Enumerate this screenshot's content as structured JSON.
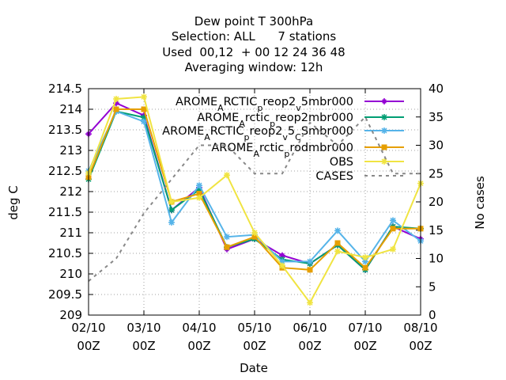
{
  "chart_data": {
    "type": "line",
    "title_lines": [
      "Dew point T 300hPa",
      "Selection: ALL      7 stations",
      "Used  00,12  + 00 12 24 36 48",
      "Averaging window: 12h"
    ],
    "xlabel": "Date",
    "ylabel": "deg C",
    "y2label": "No cases",
    "x_ticks": [
      {
        "date": "2023-10-02T00",
        "l1": "02/10",
        "l2": "00Z"
      },
      {
        "date": "2023-10-03T00",
        "l1": "03/10",
        "l2": "00Z"
      },
      {
        "date": "2023-10-04T00",
        "l1": "04/10",
        "l2": "00Z"
      },
      {
        "date": "2023-10-05T00",
        "l1": "05/10",
        "l2": "00Z"
      },
      {
        "date": "2023-10-06T00",
        "l1": "06/10",
        "l2": "00Z"
      },
      {
        "date": "2023-10-07T00",
        "l1": "07/10",
        "l2": "00Z"
      },
      {
        "date": "2023-10-08T00",
        "l1": "08/10",
        "l2": "00Z"
      }
    ],
    "x": [
      "2023-10-02T00",
      "2023-10-02T12",
      "2023-10-03T00",
      "2023-10-03T12",
      "2023-10-04T00",
      "2023-10-04T12",
      "2023-10-05T00",
      "2023-10-05T12",
      "2023-10-06T00",
      "2023-10-06T12",
      "2023-10-07T00",
      "2023-10-07T12",
      "2023-10-08T00"
    ],
    "xlim": [
      "2023-10-02T00",
      "2023-10-08T00"
    ],
    "ylim": [
      209,
      214.5
    ],
    "yticks": [
      "209",
      "209.5",
      "210",
      "210.5",
      "211",
      "211.5",
      "212",
      "212.5",
      "213",
      "213.5",
      "214",
      "214.5"
    ],
    "y2lim": [
      0,
      40
    ],
    "y2ticks": [
      "0",
      "5",
      "10",
      "15",
      "20",
      "25",
      "30",
      "35",
      "40"
    ],
    "grid": true,
    "legend_position": "top-right",
    "series": [
      {
        "name": "AROME_ARCTIC_preop2_v5mbr000",
        "label": {
          "parts": [
            [
              "AROME",
              "base"
            ],
            [
              "A",
              "sub"
            ],
            [
              "RCTIC",
              "base"
            ],
            [
              "p",
              "sub"
            ],
            [
              "reop2",
              "base"
            ],
            [
              "v",
              "sub"
            ],
            [
              "5mbr000",
              "base"
            ]
          ]
        },
        "color": "#9400d3",
        "marker": "plus",
        "axis": "y1",
        "values": [
          213.4,
          214.15,
          213.85,
          211.55,
          212.1,
          210.6,
          210.85,
          210.45,
          210.25,
          210.7,
          210.1,
          211.15,
          210.85
        ]
      },
      {
        "name": "AROME_Arctic_preop2mbr000",
        "label": {
          "parts": [
            [
              "AROME",
              "base"
            ],
            [
              "A",
              "sub"
            ],
            [
              "rctic",
              "base"
            ],
            [
              "p",
              "sub"
            ],
            [
              "reop2mbr000",
              "base"
            ]
          ]
        },
        "color": "#009e73",
        "marker": "cross",
        "axis": "y1",
        "values": [
          212.3,
          213.95,
          213.8,
          211.55,
          212.05,
          210.65,
          210.85,
          210.35,
          210.25,
          210.7,
          210.1,
          211.15,
          211.1
        ]
      },
      {
        "name": "AROME_ARCTIC_preop2_v5_CSmbr000",
        "label": {
          "parts": [
            [
              "AROME",
              "base"
            ],
            [
              "A",
              "sub"
            ],
            [
              "RCTIC",
              "base"
            ],
            [
              "p",
              "sub"
            ],
            [
              "reop2",
              "base"
            ],
            [
              "v",
              "sub"
            ],
            [
              "5",
              "base"
            ],
            [
              "C",
              "sub"
            ],
            [
              "Smbr000",
              "base"
            ]
          ]
        },
        "color": "#56b4e9",
        "marker": "star",
        "axis": "y1",
        "values": [
          212.5,
          213.95,
          213.7,
          211.25,
          212.15,
          210.9,
          210.95,
          210.3,
          210.3,
          211.05,
          210.3,
          211.3,
          210.8
        ]
      },
      {
        "name": "AROME_Arctic_prodmbr000",
        "label": {
          "parts": [
            [
              "AROME",
              "base"
            ],
            [
              "A",
              "sub"
            ],
            [
              "rctic",
              "base"
            ],
            [
              "p",
              "sub"
            ],
            [
              "rodmbr000",
              "base"
            ]
          ]
        },
        "color": "#e69f00",
        "marker": "square",
        "axis": "y1",
        "values": [
          212.35,
          214.0,
          214.0,
          211.75,
          211.95,
          210.65,
          210.9,
          210.15,
          210.1,
          210.75,
          210.15,
          211.1,
          211.1
        ]
      },
      {
        "name": "OBS",
        "label": {
          "parts": [
            [
              "OBS",
              "base"
            ]
          ]
        },
        "color": "#f0e442",
        "marker": "star",
        "axis": "y1",
        "values": [
          212.45,
          214.25,
          214.3,
          211.75,
          211.85,
          212.4,
          211.0,
          210.2,
          209.3,
          210.55,
          210.4,
          210.6,
          212.2
        ]
      },
      {
        "name": "CASES",
        "label": {
          "parts": [
            [
              "CASES",
              "base"
            ]
          ]
        },
        "color": "#888888",
        "marker": "none",
        "dashed": true,
        "axis": "y2",
        "values": [
          6,
          10,
          18,
          24,
          30,
          30,
          25,
          25,
          34,
          30,
          35,
          25,
          25
        ]
      }
    ]
  }
}
